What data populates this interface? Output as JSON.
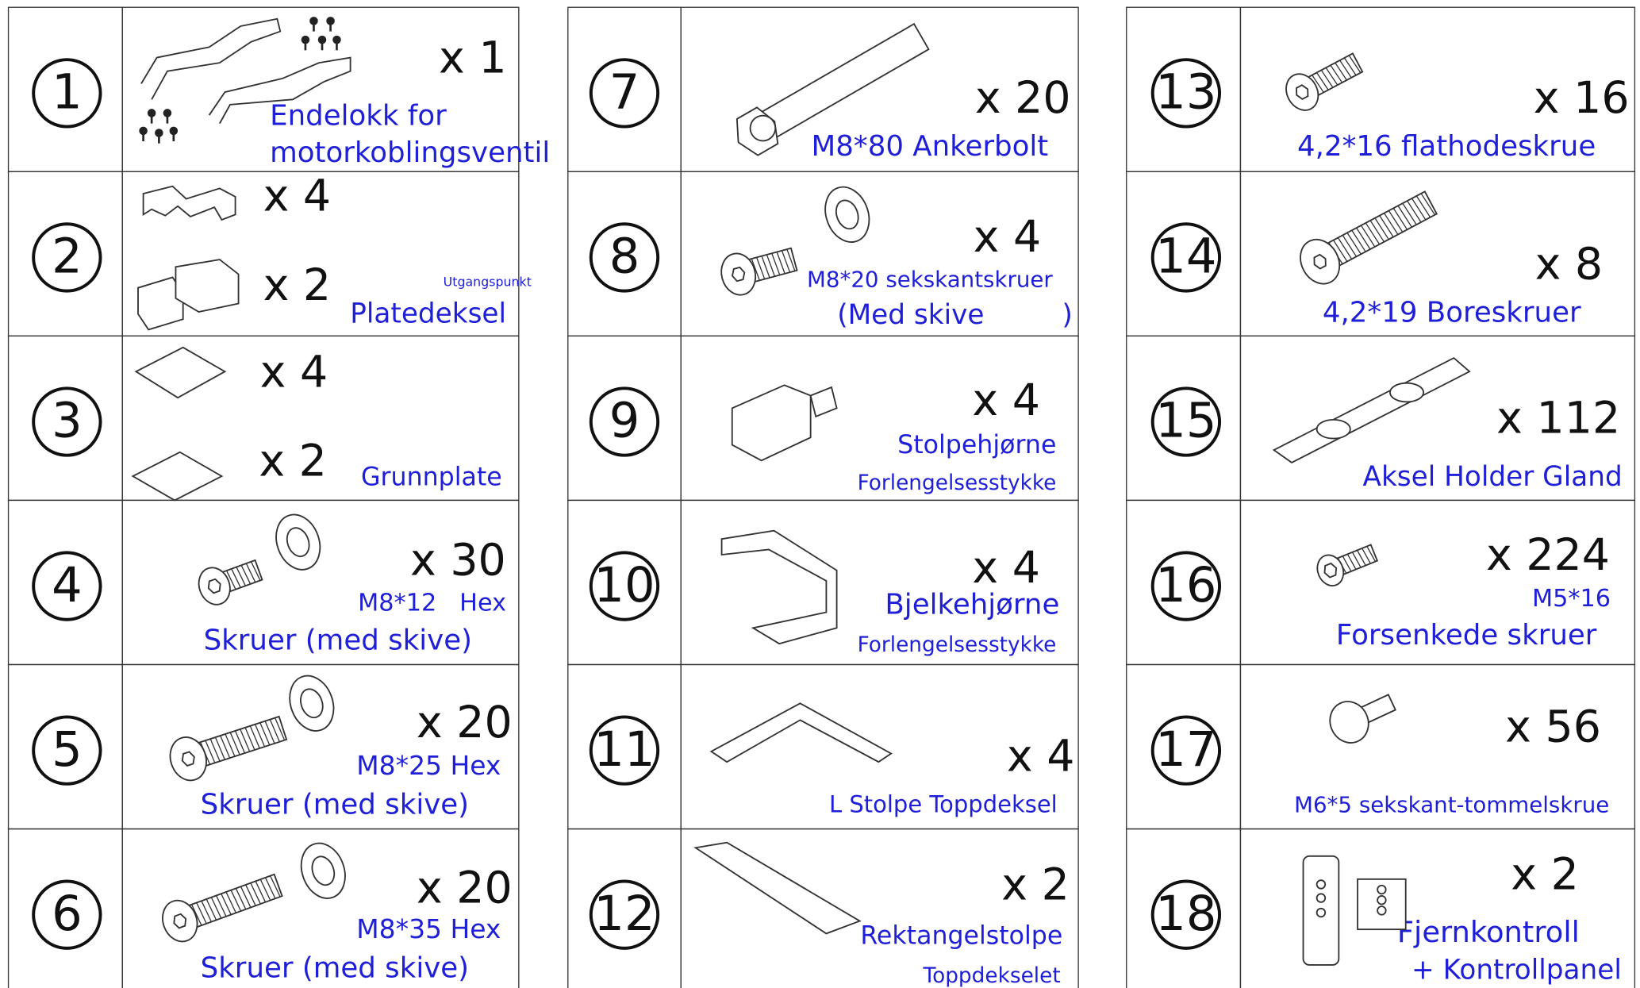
{
  "parts": [
    {
      "number": "1",
      "quantities": [
        "x 1"
      ],
      "labels": [
        "Endelokk for",
        "motorkoblingsventil"
      ]
    },
    {
      "number": "2",
      "quantities": [
        "x 4",
        "x 2"
      ],
      "labels": [
        "Utgangspunkt",
        "Platedeksel"
      ]
    },
    {
      "number": "3",
      "quantities": [
        "x 4",
        "x 2"
      ],
      "labels": [
        "Grunnplate"
      ]
    },
    {
      "number": "4",
      "quantities": [
        "x 30"
      ],
      "labels": [
        "M8*12   Hex",
        "Skruer (med skive)"
      ]
    },
    {
      "number": "5",
      "quantities": [
        "x 20"
      ],
      "labels": [
        "M8*25 Hex",
        "Skruer (med skive)"
      ]
    },
    {
      "number": "6",
      "quantities": [
        "x 20"
      ],
      "labels": [
        "M8*35 Hex",
        "Skruer (med skive)"
      ]
    },
    {
      "number": "7",
      "quantities": [
        "x 20"
      ],
      "labels": [
        "M8*80 Ankerbolt"
      ]
    },
    {
      "number": "8",
      "quantities": [
        "x 4"
      ],
      "labels": [
        "M8*20 sekskantskruer",
        "(Med skive         )"
      ]
    },
    {
      "number": "9",
      "quantities": [
        "x 4"
      ],
      "labels": [
        "Stolpehjørne",
        "Forlengelsesstykke"
      ]
    },
    {
      "number": "10",
      "quantities": [
        "x 4"
      ],
      "labels": [
        "Bjelkehjørne",
        "Forlengelsesstykke"
      ]
    },
    {
      "number": "11",
      "quantities": [
        "x 4"
      ],
      "labels": [
        "L Stolpe Toppdeksel"
      ]
    },
    {
      "number": "12",
      "quantities": [
        "x 2"
      ],
      "labels": [
        "Rektangelstolpe",
        "Toppdekselet"
      ]
    },
    {
      "number": "13",
      "quantities": [
        "x 16"
      ],
      "labels": [
        "4,2*16 flathodeskrue"
      ]
    },
    {
      "number": "14",
      "quantities": [
        "x 8"
      ],
      "labels": [
        "4,2*19 Boreskruer"
      ]
    },
    {
      "number": "15",
      "quantities": [
        "x 112"
      ],
      "labels": [
        "Aksel Holder Gland"
      ]
    },
    {
      "number": "16",
      "quantities": [
        "x 224"
      ],
      "labels": [
        "M5*16",
        "Forsenkede skruer"
      ]
    },
    {
      "number": "17",
      "quantities": [
        "x 56"
      ],
      "labels": [
        "M6*5 sekskant-tommelskrue"
      ]
    },
    {
      "number": "18",
      "quantities": [
        "x 2"
      ],
      "labels": [
        "Fjernkontroll",
        "+ Kontrollpanel"
      ]
    }
  ]
}
